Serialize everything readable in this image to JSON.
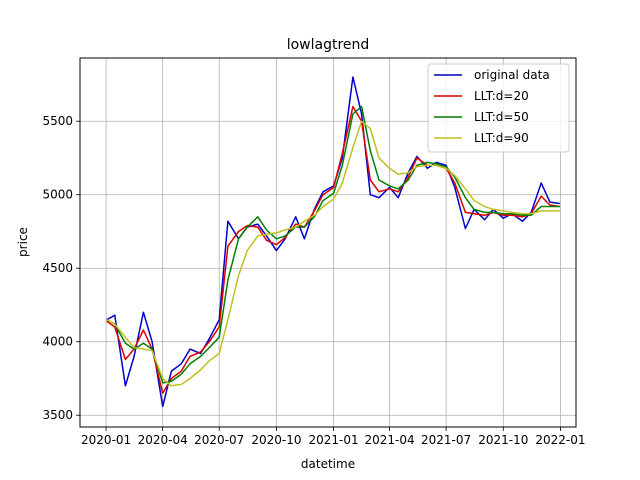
{
  "chart_data": {
    "type": "line",
    "title": "lowlagtrend",
    "xlabel": "datetime",
    "ylabel": "price",
    "x_ticks": [
      "2020-01",
      "2020-04",
      "2020-07",
      "2020-10",
      "2021-01",
      "2021-04",
      "2021-07",
      "2021-10",
      "2022-01"
    ],
    "y_ticks": [
      3500,
      4000,
      4500,
      5000,
      5500
    ],
    "xlim": [
      "2019-11-20",
      "2022-01-26"
    ],
    "ylim": [
      3420,
      5930
    ],
    "grid": true,
    "legend_position": "top-right",
    "x": [
      "2020-01-02",
      "2020-01-15",
      "2020-02-01",
      "2020-02-15",
      "2020-03-01",
      "2020-03-15",
      "2020-04-01",
      "2020-04-15",
      "2020-05-01",
      "2020-05-15",
      "2020-06-01",
      "2020-06-15",
      "2020-07-01",
      "2020-07-15",
      "2020-08-01",
      "2020-08-15",
      "2020-09-01",
      "2020-09-15",
      "2020-10-01",
      "2020-10-15",
      "2020-11-01",
      "2020-11-15",
      "2020-12-01",
      "2020-12-15",
      "2021-01-01",
      "2021-01-15",
      "2021-02-01",
      "2021-02-15",
      "2021-03-01",
      "2021-03-15",
      "2021-04-01",
      "2021-04-15",
      "2021-05-01",
      "2021-05-15",
      "2021-06-01",
      "2021-06-15",
      "2021-07-01",
      "2021-07-15",
      "2021-08-01",
      "2021-08-15",
      "2021-09-01",
      "2021-09-15",
      "2021-10-01",
      "2021-10-15",
      "2021-11-01",
      "2021-11-15",
      "2021-12-01",
      "2021-12-15",
      "2021-12-31"
    ],
    "series": [
      {
        "name": "original data",
        "color": "#0000cc",
        "values": [
          4150,
          4180,
          3700,
          3900,
          4200,
          4000,
          3560,
          3800,
          3850,
          3950,
          3920,
          4020,
          4150,
          4820,
          4700,
          4780,
          4800,
          4720,
          4620,
          4700,
          4850,
          4700,
          4900,
          5020,
          5060,
          5250,
          5800,
          5550,
          5000,
          4980,
          5050,
          4980,
          5150,
          5260,
          5180,
          5220,
          5200,
          5050,
          4770,
          4900,
          4830,
          4900,
          4840,
          4870,
          4820,
          4880,
          5080,
          4950,
          4940
        ]
      },
      {
        "name": "LLT:d=20",
        "color": "#dd0000",
        "values": [
          4140,
          4100,
          3880,
          3950,
          4080,
          3950,
          3650,
          3750,
          3800,
          3900,
          3930,
          4000,
          4100,
          4650,
          4750,
          4790,
          4780,
          4690,
          4660,
          4710,
          4800,
          4780,
          4890,
          5000,
          5050,
          5280,
          5600,
          5500,
          5100,
          5020,
          5040,
          5020,
          5120,
          5250,
          5200,
          5200,
          5180,
          5080,
          4880,
          4870,
          4860,
          4880,
          4860,
          4860,
          4850,
          4870,
          4990,
          4930,
          4920
        ]
      },
      {
        "name": "LLT:d=50",
        "color": "#008000",
        "values": [
          4150,
          4120,
          3990,
          3950,
          3990,
          3950,
          3720,
          3730,
          3780,
          3850,
          3900,
          3960,
          4030,
          4420,
          4700,
          4780,
          4850,
          4760,
          4700,
          4720,
          4780,
          4780,
          4850,
          4960,
          5010,
          5200,
          5550,
          5600,
          5300,
          5100,
          5060,
          5040,
          5100,
          5200,
          5220,
          5210,
          5190,
          5120,
          4980,
          4900,
          4880,
          4880,
          4870,
          4870,
          4860,
          4860,
          4920,
          4920,
          4920
        ]
      },
      {
        "name": "LLT:d=90",
        "color": "#c0c020",
        "values": [
          4150,
          4120,
          4030,
          3960,
          3950,
          3940,
          3750,
          3700,
          3710,
          3750,
          3810,
          3870,
          3920,
          4150,
          4450,
          4620,
          4720,
          4730,
          4740,
          4760,
          4780,
          4820,
          4860,
          4920,
          4970,
          5080,
          5320,
          5500,
          5450,
          5250,
          5180,
          5140,
          5150,
          5190,
          5200,
          5200,
          5180,
          5130,
          5040,
          4960,
          4920,
          4900,
          4890,
          4880,
          4870,
          4870,
          4890,
          4890,
          4890
        ]
      }
    ]
  }
}
